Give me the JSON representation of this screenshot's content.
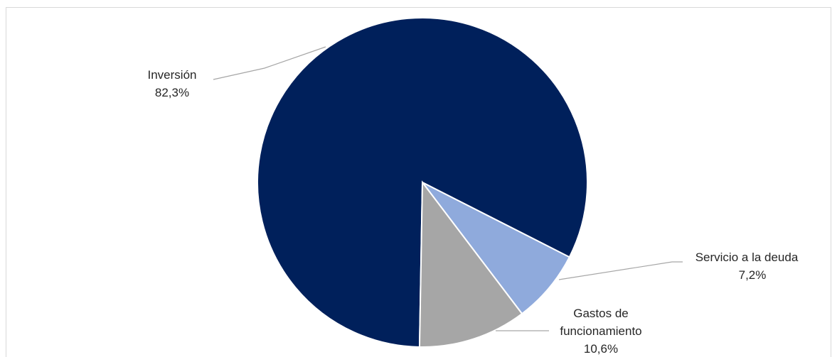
{
  "chart_data": {
    "type": "pie",
    "title": "",
    "slices": [
      {
        "label": "Inversión",
        "value_label": "82,3%",
        "value": 82.3,
        "color": "#00205b"
      },
      {
        "label": "Servicio a la deuda",
        "value_label": "7,2%",
        "value": 7.2,
        "color": "#8faadc"
      },
      {
        "label": "Gastos de funcionamiento",
        "label_lines": [
          "Gastos de",
          "funcionamiento"
        ],
        "value_label": "10,6%",
        "value": 10.6,
        "color": "#a6a6a6"
      }
    ],
    "leader_line_color": "#a6a6a6",
    "border_color": "#d9d9d9"
  }
}
